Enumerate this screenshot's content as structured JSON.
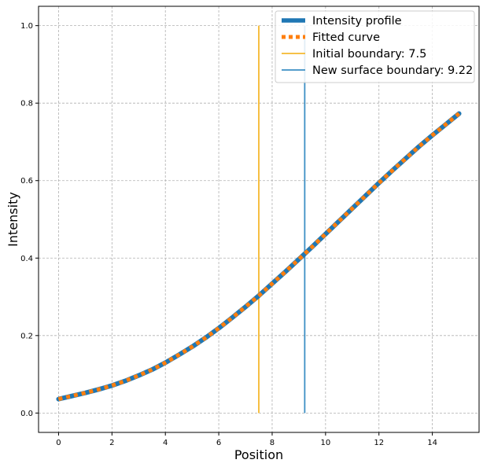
{
  "chart_data": {
    "type": "line",
    "title": "",
    "xlabel": "Position",
    "ylabel": "Intensity",
    "xlim": [
      -0.75,
      15.75
    ],
    "ylim": [
      -0.05,
      1.05
    ],
    "xticks": [
      "0",
      "2",
      "4",
      "6",
      "8",
      "10",
      "12",
      "14"
    ],
    "yticks": [
      "0.0",
      "0.2",
      "0.4",
      "0.6",
      "0.8",
      "1.0"
    ],
    "grid": true,
    "legend_position": "top-right",
    "x": [
      0,
      0.5,
      1,
      1.5,
      2,
      2.5,
      3,
      3.5,
      4,
      4.5,
      5,
      5.5,
      6,
      6.5,
      7,
      7.5,
      8,
      8.5,
      9,
      9.5,
      10,
      10.5,
      11,
      11.5,
      12,
      12.5,
      13,
      13.5,
      14,
      14.5,
      15
    ],
    "series": [
      {
        "name": "Intensity profile",
        "color": "#1f77b4",
        "style": "solid",
        "values": [
          0.036,
          0.044,
          0.052,
          0.061,
          0.071,
          0.083,
          0.097,
          0.112,
          0.13,
          0.15,
          0.171,
          0.194,
          0.219,
          0.246,
          0.274,
          0.303,
          0.334,
          0.365,
          0.397,
          0.429,
          0.462,
          0.495,
          0.528,
          0.561,
          0.594,
          0.626,
          0.657,
          0.688,
          0.717,
          0.745,
          0.773
        ]
      },
      {
        "name": "Fitted curve",
        "color": "#ff7f0e",
        "style": "dotted",
        "values": [
          0.036,
          0.044,
          0.052,
          0.061,
          0.071,
          0.083,
          0.097,
          0.112,
          0.13,
          0.15,
          0.171,
          0.194,
          0.219,
          0.246,
          0.274,
          0.303,
          0.334,
          0.365,
          0.397,
          0.429,
          0.462,
          0.495,
          0.528,
          0.561,
          0.594,
          0.626,
          0.657,
          0.688,
          0.717,
          0.745,
          0.773
        ]
      }
    ],
    "vlines": [
      {
        "name": "Initial boundary: 7.5",
        "x": 7.5,
        "y_range": [
          0,
          1.0
        ],
        "color": "#f5b82e"
      },
      {
        "name": "New surface boundary: 9.22",
        "x": 9.22,
        "y_range": [
          0,
          1.0
        ],
        "color": "#3c8fc4"
      }
    ]
  }
}
